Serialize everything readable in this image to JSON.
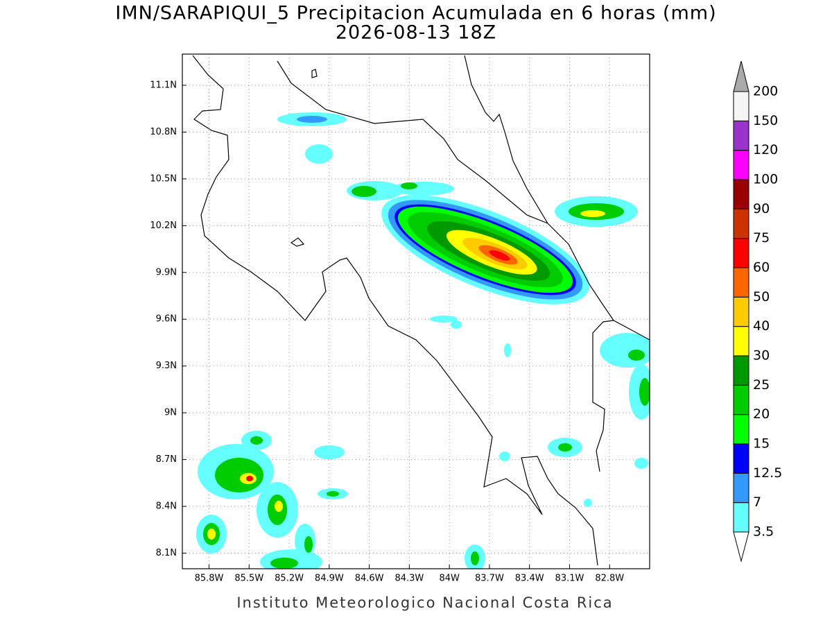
{
  "title": "IMN/SARAPIQUI_5 Precipitacion Acumulada en 6 horas (mm)",
  "subtitle": "2026-08-13 18Z",
  "footer": "Instituto Meteorologico Nacional Costa Rica",
  "map": {
    "xlim": [
      -86.0,
      -82.5
    ],
    "ylim": [
      8.0,
      11.3
    ],
    "grid": true,
    "lon_ticks": [
      {
        "value": -85.8,
        "label": "85.8W"
      },
      {
        "value": -85.5,
        "label": "85.5W"
      },
      {
        "value": -85.2,
        "label": "85.2W"
      },
      {
        "value": -84.9,
        "label": "84.9W"
      },
      {
        "value": -84.6,
        "label": "84.6W"
      },
      {
        "value": -84.3,
        "label": "84.3W"
      },
      {
        "value": -84.0,
        "label": "84W"
      },
      {
        "value": -83.7,
        "label": "83.7W"
      },
      {
        "value": -83.4,
        "label": "83.4W"
      },
      {
        "value": -83.1,
        "label": "83.1W"
      },
      {
        "value": -82.8,
        "label": "82.8W"
      }
    ],
    "lat_ticks": [
      {
        "value": 8.1,
        "label": "8.1N"
      },
      {
        "value": 8.4,
        "label": "8.4N"
      },
      {
        "value": 8.7,
        "label": "8.7N"
      },
      {
        "value": 9.0,
        "label": "9N"
      },
      {
        "value": 9.3,
        "label": "9.3N"
      },
      {
        "value": 9.6,
        "label": "9.6N"
      },
      {
        "value": 9.9,
        "label": "9.9N"
      },
      {
        "value": 10.2,
        "label": "10.2N"
      },
      {
        "value": 10.5,
        "label": "10.5N"
      },
      {
        "value": 10.8,
        "label": "10.8N"
      },
      {
        "value": 11.1,
        "label": "11.1N"
      }
    ]
  },
  "colorbar": {
    "levels": [
      3.5,
      7,
      12.5,
      15,
      20,
      25,
      30,
      40,
      50,
      60,
      75,
      90,
      100,
      120,
      150,
      200
    ],
    "colors": [
      "#66ffff",
      "#3399ff",
      "#0000ff",
      "#00ff00",
      "#00cc00",
      "#009900",
      "#ffff00",
      "#ffcc00",
      "#ff6600",
      "#ff0000",
      "#cc3300",
      "#990000",
      "#ff00ff",
      "#9933cc",
      "#f5f5f5"
    ],
    "under_color": "#ffffff",
    "over_color": "#aaaaaa"
  }
}
